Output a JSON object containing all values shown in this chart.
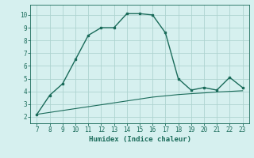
{
  "xlabel": "Humidex (Indice chaleur)",
  "x_values": [
    7,
    8,
    9,
    10,
    11,
    12,
    13,
    14,
    15,
    16,
    17,
    18,
    19,
    20,
    21,
    22,
    23
  ],
  "y_curve1": [
    2.2,
    3.7,
    4.6,
    6.5,
    8.4,
    9.0,
    9.0,
    10.1,
    10.1,
    10.0,
    8.6,
    5.0,
    4.1,
    4.3,
    4.1,
    5.1,
    4.3
  ],
  "y_curve2": [
    2.2,
    2.35,
    2.5,
    2.65,
    2.8,
    2.95,
    3.1,
    3.25,
    3.4,
    3.55,
    3.65,
    3.75,
    3.82,
    3.88,
    3.95,
    4.0,
    4.05
  ],
  "line_color": "#1a6b5a",
  "bg_color": "#d6f0ef",
  "grid_color": "#aed4d0",
  "text_color": "#1a6b5a",
  "ylim": [
    1.5,
    10.8
  ],
  "xlim": [
    6.5,
    23.5
  ],
  "yticks": [
    2,
    3,
    4,
    5,
    6,
    7,
    8,
    9,
    10
  ],
  "xticks": [
    7,
    8,
    9,
    10,
    11,
    12,
    13,
    14,
    15,
    16,
    17,
    18,
    19,
    20,
    21,
    22,
    23
  ]
}
